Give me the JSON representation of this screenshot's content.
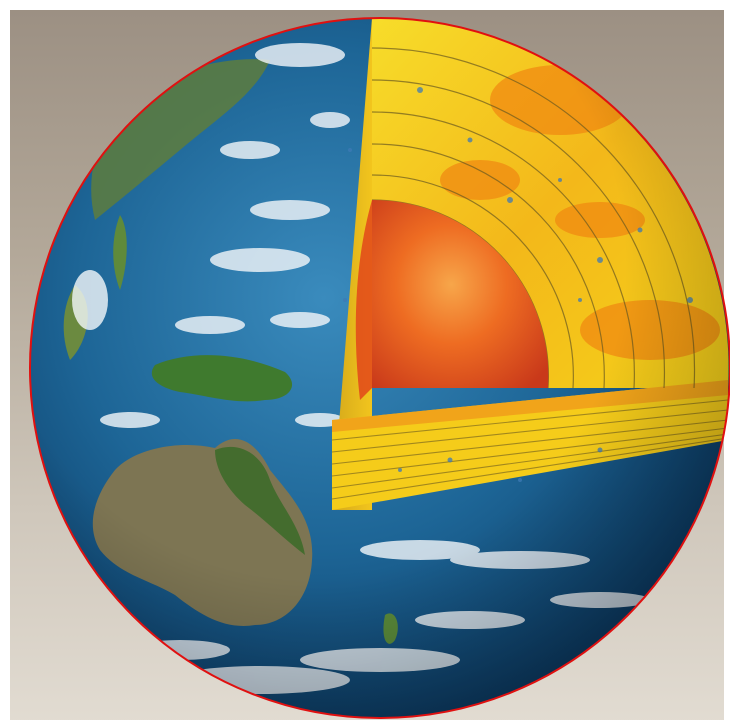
{
  "image": {
    "subject": "earth-cutaway",
    "colors": {
      "outline": "#e01010",
      "ocean_deep": "#0e4a78",
      "ocean_light": "#2f7fb0",
      "land": "#5b7a3a",
      "land_dry": "#8a7a5a",
      "cloud": "#f4f7fa",
      "mantle_yellow": "#f5d21a",
      "mantle_orange": "#f08a12",
      "core_red": "#e2471a",
      "core_orange": "#f58a2a"
    },
    "layer_count": 8
  }
}
